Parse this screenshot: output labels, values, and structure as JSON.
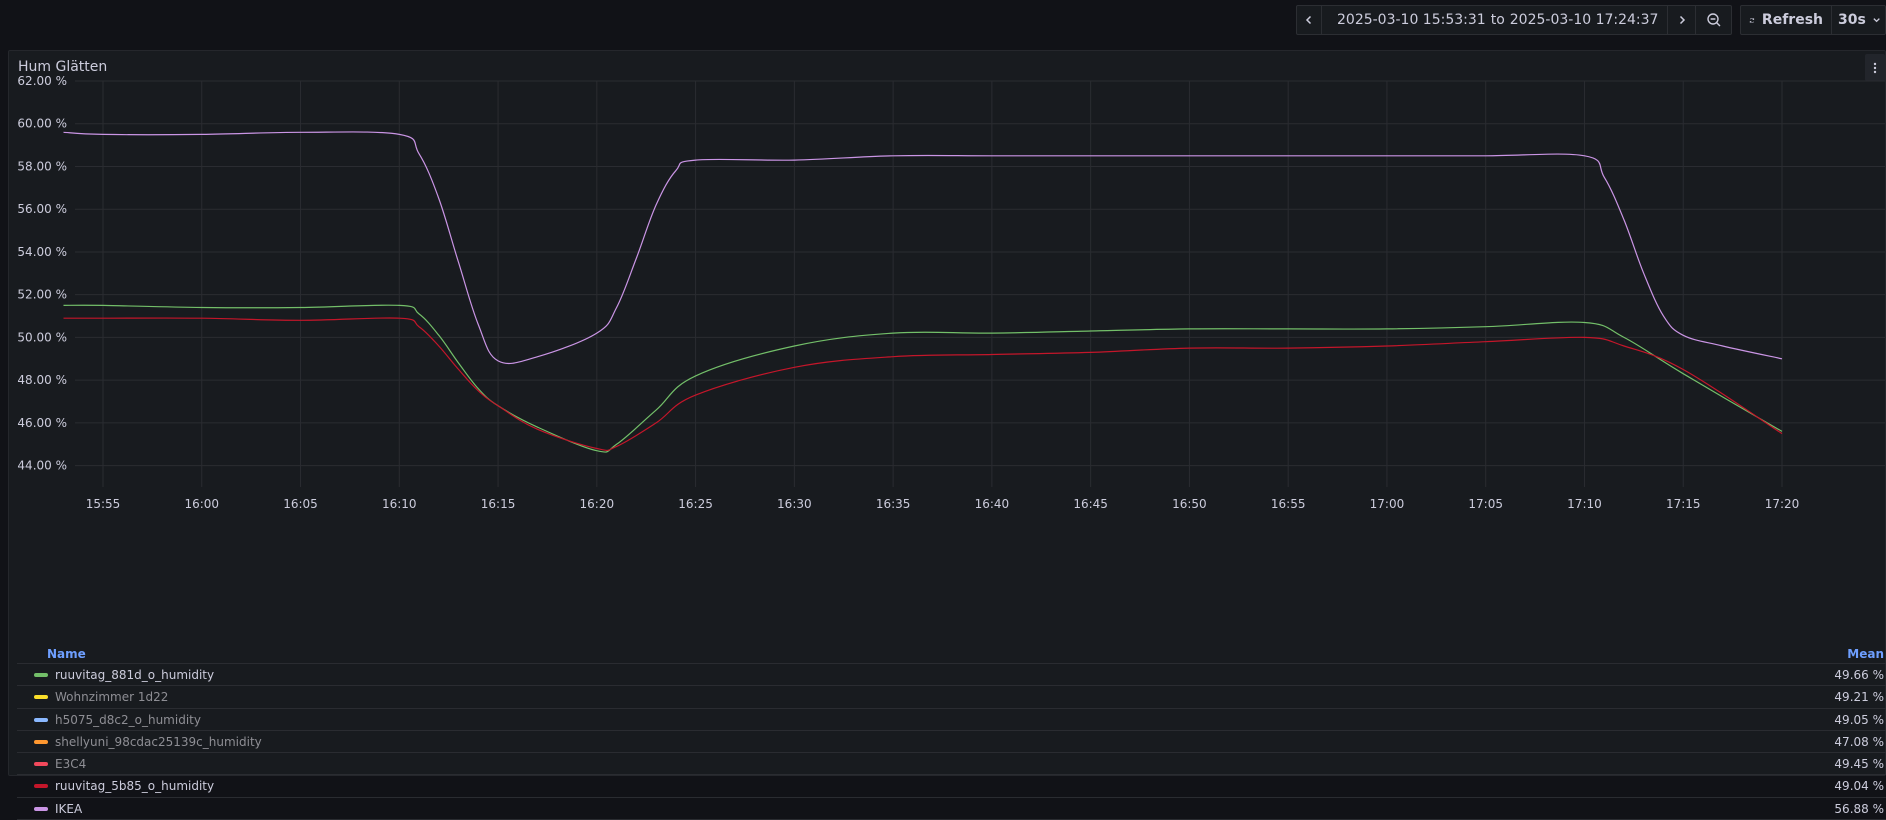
{
  "toolbar": {
    "time_range_from": "2025-03-10 15:53:31",
    "time_range_sep": "to",
    "time_range_to": "2025-03-10 17:24:37",
    "refresh_label": "Refresh",
    "refresh_interval": "30s"
  },
  "panel": {
    "title": "Hum Glätten"
  },
  "legend": {
    "name_header": "Name",
    "mean_header": "Mean",
    "items": [
      {
        "label": "ruuvitag_881d_o_humidity",
        "mean": "49.66 %",
        "color": "#73bf69",
        "dim": false
      },
      {
        "label": "Wohnzimmer 1d22",
        "mean": "49.21 %",
        "color": "#fade2a",
        "dim": true
      },
      {
        "label": "h5075_d8c2_o_humidity",
        "mean": "49.05 %",
        "color": "#8ab8ff",
        "dim": true
      },
      {
        "label": "shellyuni_98cdac25139c_humidity",
        "mean": "47.08 %",
        "color": "#ff9830",
        "dim": true
      },
      {
        "label": "E3C4",
        "mean": "49.45 %",
        "color": "#f2495c",
        "dim": true
      },
      {
        "label": "ruuvitag_5b85_o_humidity",
        "mean": "49.04 %",
        "color": "#c4162a",
        "dim": false
      },
      {
        "label": "IKEA",
        "mean": "56.88 %",
        "color": "#ca95e5",
        "dim": false
      }
    ]
  },
  "chart_data": {
    "type": "line",
    "title": "Hum Glätten",
    "xlabel": "",
    "ylabel": "",
    "ylim": [
      43.0,
      62.0
    ],
    "y_ticks": [
      "44.00 %",
      "46.00 %",
      "48.00 %",
      "50.00 %",
      "52.00 %",
      "54.00 %",
      "56.00 %",
      "58.00 %",
      "60.00 %",
      "62.00 %"
    ],
    "x_ticks": [
      "15:55",
      "16:00",
      "16:05",
      "16:10",
      "16:15",
      "16:20",
      "16:25",
      "16:30",
      "16:35",
      "16:40",
      "16:45",
      "16:50",
      "16:55",
      "17:00",
      "17:05",
      "17:10",
      "17:15",
      "17:20"
    ],
    "x_range": [
      "15:53:31",
      "17:24:37"
    ],
    "grid": true,
    "legend_position": "bottom",
    "series": [
      {
        "name": "IKEA",
        "color": "#ca95e5",
        "points": [
          [
            "15:53",
            59.6
          ],
          [
            "15:55",
            59.5
          ],
          [
            "16:00",
            59.5
          ],
          [
            "16:05",
            59.6
          ],
          [
            "16:10",
            59.5
          ],
          [
            "16:11",
            58.6
          ],
          [
            "16:12",
            56.5
          ],
          [
            "16:13",
            53.5
          ],
          [
            "16:14",
            50.6
          ],
          [
            "16:15",
            48.9
          ],
          [
            "16:17",
            49.1
          ],
          [
            "16:20",
            50.2
          ],
          [
            "16:21",
            51.4
          ],
          [
            "16:22",
            53.7
          ],
          [
            "16:23",
            56.2
          ],
          [
            "16:24",
            57.8
          ],
          [
            "16:25",
            58.3
          ],
          [
            "16:30",
            58.3
          ],
          [
            "16:35",
            58.5
          ],
          [
            "16:40",
            58.5
          ],
          [
            "16:45",
            58.5
          ],
          [
            "16:50",
            58.5
          ],
          [
            "16:55",
            58.5
          ],
          [
            "17:00",
            58.5
          ],
          [
            "17:05",
            58.5
          ],
          [
            "17:10",
            58.5
          ],
          [
            "17:11",
            57.5
          ],
          [
            "17:12",
            55.5
          ],
          [
            "17:13",
            53.0
          ],
          [
            "17:14",
            51.0
          ],
          [
            "17:15",
            50.1
          ],
          [
            "17:17",
            49.6
          ],
          [
            "17:20",
            49.0
          ]
        ]
      },
      {
        "name": "ruuvitag_881d_o_humidity",
        "color": "#73bf69",
        "points": [
          [
            "15:53",
            51.5
          ],
          [
            "15:55",
            51.5
          ],
          [
            "16:00",
            51.4
          ],
          [
            "16:05",
            51.4
          ],
          [
            "16:10",
            51.5
          ],
          [
            "16:11",
            51.1
          ],
          [
            "16:12",
            50.1
          ],
          [
            "16:13",
            48.8
          ],
          [
            "16:14",
            47.6
          ],
          [
            "16:15",
            46.8
          ],
          [
            "16:17",
            45.8
          ],
          [
            "16:20",
            44.7
          ],
          [
            "16:21",
            45.0
          ],
          [
            "16:23",
            46.6
          ],
          [
            "16:25",
            48.2
          ],
          [
            "16:30",
            49.6
          ],
          [
            "16:35",
            50.2
          ],
          [
            "16:40",
            50.2
          ],
          [
            "16:45",
            50.3
          ],
          [
            "16:50",
            50.4
          ],
          [
            "16:55",
            50.4
          ],
          [
            "17:00",
            50.4
          ],
          [
            "17:05",
            50.5
          ],
          [
            "17:10",
            50.7
          ],
          [
            "17:12",
            50.0
          ],
          [
            "17:15",
            48.3
          ],
          [
            "17:20",
            45.6
          ]
        ]
      },
      {
        "name": "ruuvitag_5b85_o_humidity",
        "color": "#c4162a",
        "points": [
          [
            "15:53",
            50.9
          ],
          [
            "15:55",
            50.9
          ],
          [
            "16:00",
            50.9
          ],
          [
            "16:05",
            50.8
          ],
          [
            "16:10",
            50.9
          ],
          [
            "16:11",
            50.5
          ],
          [
            "16:12",
            49.6
          ],
          [
            "16:13",
            48.5
          ],
          [
            "16:14",
            47.5
          ],
          [
            "16:15",
            46.8
          ],
          [
            "16:17",
            45.7
          ],
          [
            "16:20",
            44.8
          ],
          [
            "16:21",
            44.9
          ],
          [
            "16:23",
            46.0
          ],
          [
            "16:25",
            47.3
          ],
          [
            "16:30",
            48.6
          ],
          [
            "16:35",
            49.1
          ],
          [
            "16:40",
            49.2
          ],
          [
            "16:45",
            49.3
          ],
          [
            "16:50",
            49.5
          ],
          [
            "16:55",
            49.5
          ],
          [
            "17:00",
            49.6
          ],
          [
            "17:05",
            49.8
          ],
          [
            "17:10",
            50.0
          ],
          [
            "17:12",
            49.6
          ],
          [
            "17:15",
            48.5
          ],
          [
            "17:20",
            45.5
          ]
        ]
      }
    ]
  }
}
